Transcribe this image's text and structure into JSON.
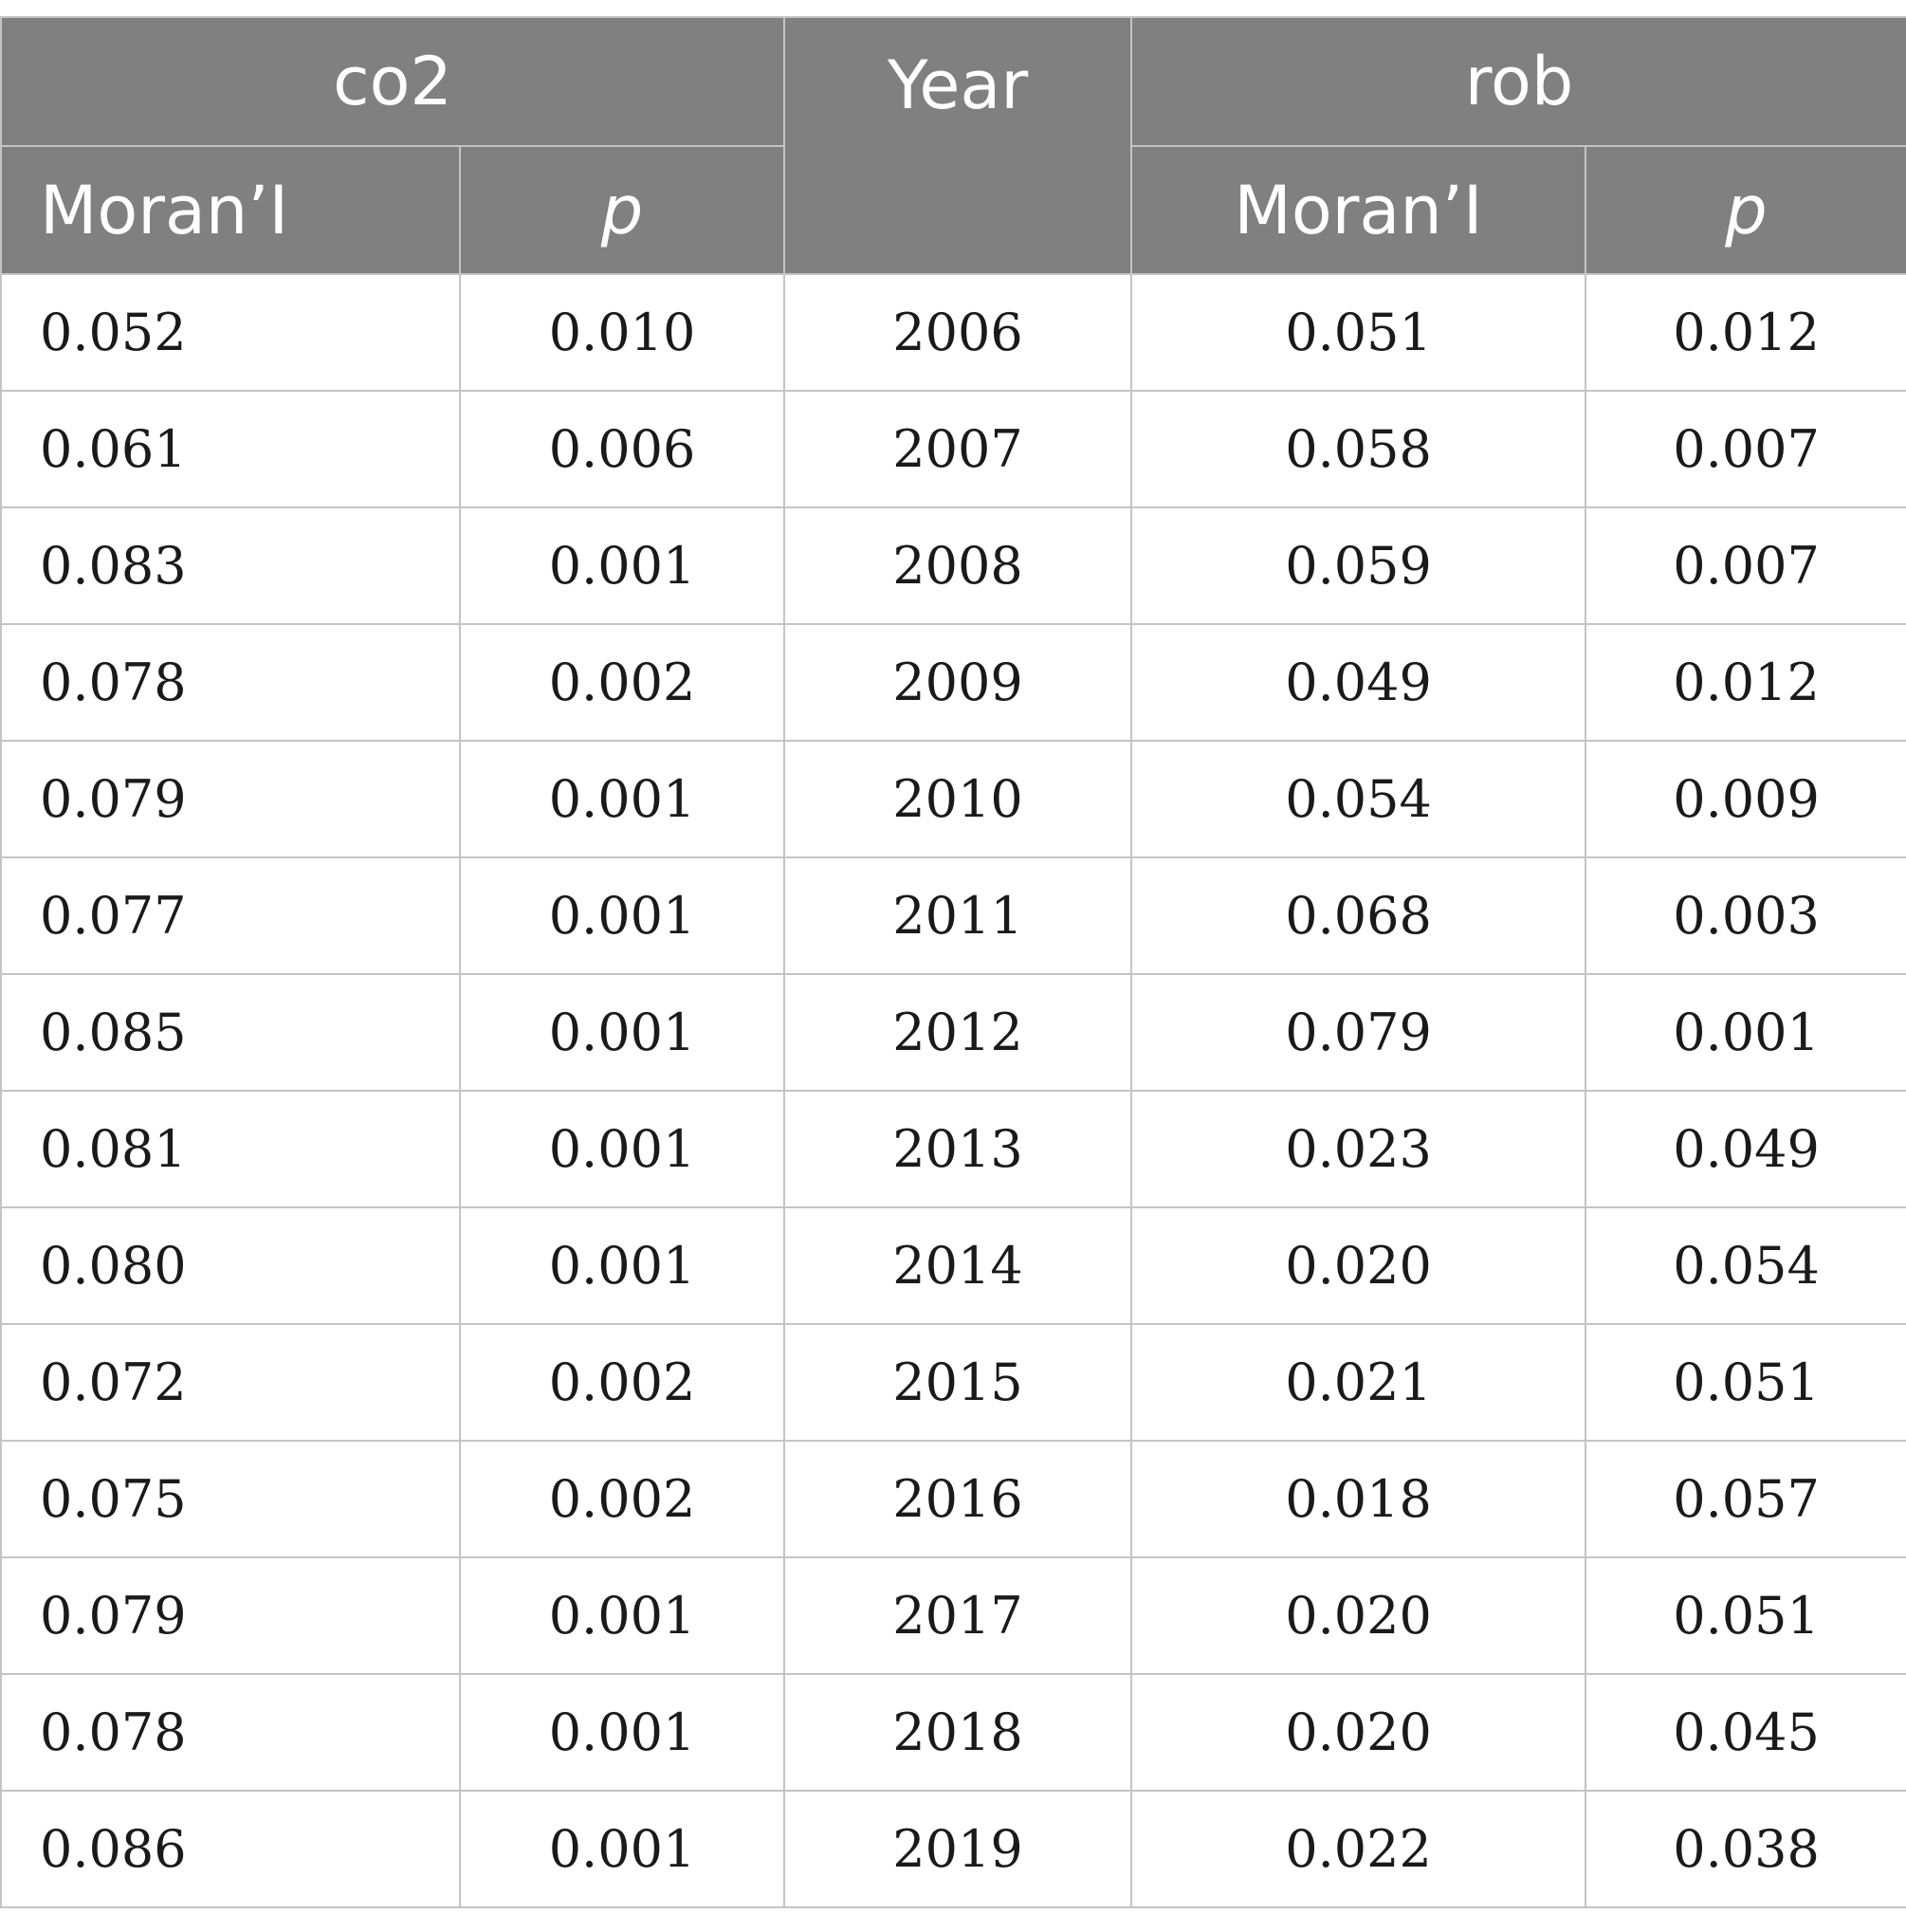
{
  "table": {
    "header": {
      "co2": "co2",
      "year": "Year",
      "rob": "rob",
      "co2_moran": "Moran’I",
      "co2_p": "p",
      "rob_moran": "Moran’I",
      "rob_p": "p"
    },
    "rows": [
      {
        "co2_moran": "0.052",
        "co2_p": "0.010",
        "year": "2006",
        "rob_moran": "0.051",
        "rob_p": "0.012"
      },
      {
        "co2_moran": "0.061",
        "co2_p": "0.006",
        "year": "2007",
        "rob_moran": "0.058",
        "rob_p": "0.007"
      },
      {
        "co2_moran": "0.083",
        "co2_p": "0.001",
        "year": "2008",
        "rob_moran": "0.059",
        "rob_p": "0.007"
      },
      {
        "co2_moran": "0.078",
        "co2_p": "0.002",
        "year": "2009",
        "rob_moran": "0.049",
        "rob_p": "0.012"
      },
      {
        "co2_moran": "0.079",
        "co2_p": "0.001",
        "year": "2010",
        "rob_moran": "0.054",
        "rob_p": "0.009"
      },
      {
        "co2_moran": "0.077",
        "co2_p": "0.001",
        "year": "2011",
        "rob_moran": "0.068",
        "rob_p": "0.003"
      },
      {
        "co2_moran": "0.085",
        "co2_p": "0.001",
        "year": "2012",
        "rob_moran": "0.079",
        "rob_p": "0.001"
      },
      {
        "co2_moran": "0.081",
        "co2_p": "0.001",
        "year": "2013",
        "rob_moran": "0.023",
        "rob_p": "0.049"
      },
      {
        "co2_moran": "0.080",
        "co2_p": "0.001",
        "year": "2014",
        "rob_moran": "0.020",
        "rob_p": "0.054"
      },
      {
        "co2_moran": "0.072",
        "co2_p": "0.002",
        "year": "2015",
        "rob_moran": "0.021",
        "rob_p": "0.051"
      },
      {
        "co2_moran": "0.075",
        "co2_p": "0.002",
        "year": "2016",
        "rob_moran": "0.018",
        "rob_p": "0.057"
      },
      {
        "co2_moran": "0.079",
        "co2_p": "0.001",
        "year": "2017",
        "rob_moran": "0.020",
        "rob_p": "0.051"
      },
      {
        "co2_moran": "0.078",
        "co2_p": "0.001",
        "year": "2018",
        "rob_moran": "0.020",
        "rob_p": "0.045"
      },
      {
        "co2_moran": "0.086",
        "co2_p": "0.001",
        "year": "2019",
        "rob_moran": "0.022",
        "rob_p": "0.038"
      }
    ]
  }
}
